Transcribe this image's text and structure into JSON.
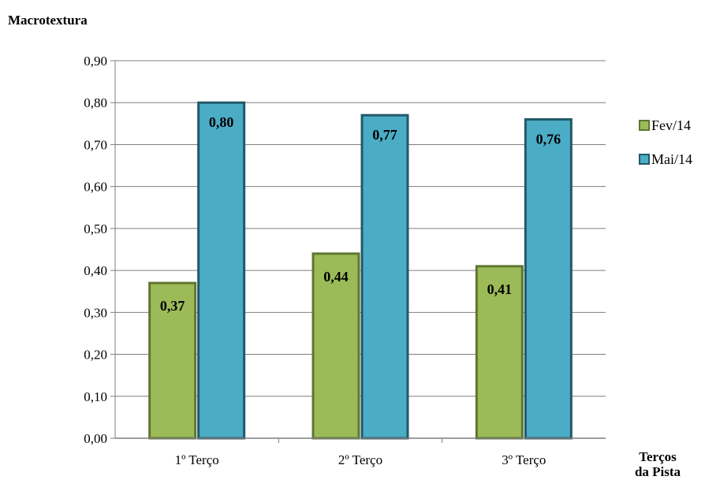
{
  "chart_data": {
    "type": "bar",
    "ylabel": "Macrotextura",
    "xlabel": [
      "Terços",
      "da Pista"
    ],
    "categories": [
      "1º Terço",
      "2º Terço",
      "3º Terço"
    ],
    "series": [
      {
        "name": "Fev/14",
        "values": [
          0.37,
          0.44,
          0.41
        ],
        "labels": [
          "0,37",
          "0,44",
          "0,41"
        ],
        "color": "#9bbb59",
        "border": "#5f7530"
      },
      {
        "name": "Mai/14",
        "values": [
          0.8,
          0.77,
          0.76
        ],
        "labels": [
          "0,80",
          "0,77",
          "0,76"
        ],
        "color": "#4bacc6",
        "border": "#215968"
      }
    ],
    "ylim": [
      0,
      0.9
    ],
    "yticks": [
      "0,00",
      "0,10",
      "0,20",
      "0,30",
      "0,40",
      "0,50",
      "0,60",
      "0,70",
      "0,80",
      "0,90"
    ],
    "grid": true,
    "legend": "right"
  }
}
